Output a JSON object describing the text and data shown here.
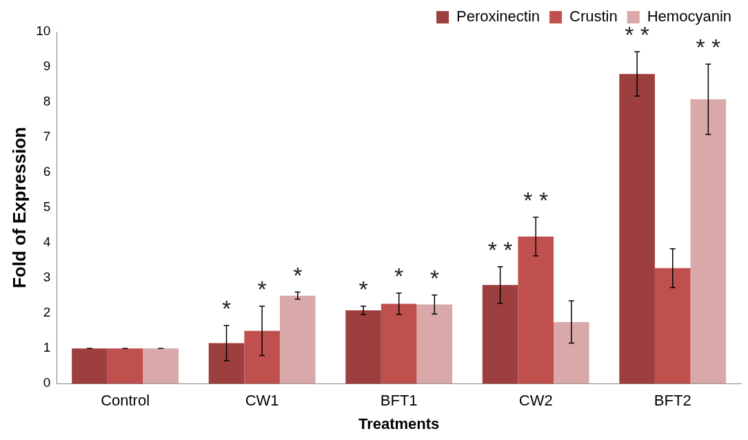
{
  "chart_data": {
    "type": "bar",
    "xlabel": "Treatments",
    "ylabel": "Fold of Expression",
    "categories": [
      "Control",
      "CW1",
      "BFT1",
      "CW2",
      "BFT2"
    ],
    "series": [
      {
        "name": "Peroxinectin",
        "color": "#9e3f3f",
        "values": [
          1,
          1.15,
          2.08,
          2.8,
          8.8
        ],
        "errors": [
          0,
          0.5,
          0.12,
          0.52,
          0.63
        ],
        "value_labels": [
          null,
          "*",
          "*",
          "* *",
          "* *"
        ]
      },
      {
        "name": "Crustin",
        "color": "#c0504d",
        "values": [
          1,
          1.5,
          2.27,
          4.18,
          3.28
        ],
        "errors": [
          0,
          0.7,
          0.3,
          0.55,
          0.55
        ],
        "value_labels": [
          null,
          "*",
          "*",
          "* *",
          null
        ]
      },
      {
        "name": "Hemocyanin",
        "color": "#d9a9a9",
        "values": [
          1,
          2.5,
          2.25,
          1.75,
          8.08
        ],
        "errors": [
          0,
          0.1,
          0.27,
          0.6,
          1.0
        ],
        "value_labels": [
          null,
          "*",
          "*",
          null,
          "* *"
        ]
      }
    ],
    "ylim": [
      0,
      10
    ],
    "yticks": [
      0,
      1,
      2,
      3,
      4,
      5,
      6,
      7,
      8,
      9,
      10
    ],
    "grid": false,
    "legend": "top right"
  }
}
